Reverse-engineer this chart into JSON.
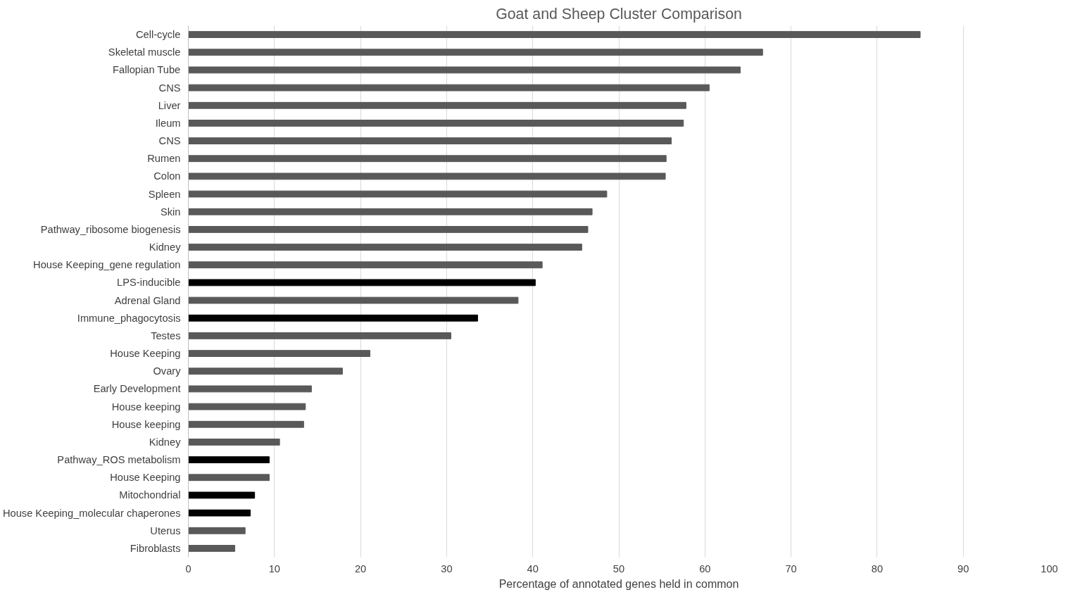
{
  "chart_data": {
    "type": "bar",
    "orientation": "horizontal",
    "title": "Goat and Sheep Cluster Comparison",
    "xlabel": "Percentage of annotated genes held in common",
    "categories": [
      "Cell-cycle",
      "Skeletal muscle",
      "Fallopian Tube",
      "CNS",
      "Liver",
      "Ileum",
      "CNS",
      "Rumen",
      "Colon",
      "Spleen",
      "Skin",
      "Pathway_ribosome biogenesis",
      "Kidney",
      "House Keeping_gene regulation",
      "LPS-inducible",
      "Adrenal Gland",
      "Immune_phagocytosis",
      "Testes",
      "House Keeping",
      "Ovary",
      "Early Development",
      "House keeping",
      "House keeping",
      "Kidney",
      "Pathway_ROS metabolism",
      "House Keeping",
      "Mitochondrial",
      "House Keeping_molecular chaperones",
      "Uterus",
      "Fibroblasts"
    ],
    "values": [
      85,
      66.7,
      64.1,
      60.5,
      57.8,
      57.5,
      56.1,
      55.5,
      55.4,
      48.6,
      46.9,
      46.4,
      45.7,
      41.1,
      40.3,
      38.3,
      33.6,
      30.5,
      21.1,
      17.9,
      14.3,
      13.6,
      13.4,
      10.6,
      9.4,
      9.4,
      7.7,
      7.2,
      6.6,
      5.4
    ],
    "colors": [
      "#595959",
      "#595959",
      "#595959",
      "#595959",
      "#595959",
      "#595959",
      "#595959",
      "#595959",
      "#595959",
      "#595959",
      "#595959",
      "#595959",
      "#595959",
      "#595959",
      "#000000",
      "#595959",
      "#000000",
      "#595959",
      "#595959",
      "#595959",
      "#595959",
      "#595959",
      "#595959",
      "#595959",
      "#000000",
      "#595959",
      "#000000",
      "#000000",
      "#595959",
      "#595959"
    ],
    "xlim": [
      0,
      100
    ],
    "xticks": [
      0,
      10,
      20,
      30,
      40,
      50,
      60,
      70,
      80,
      90,
      100
    ],
    "grid": "x"
  }
}
